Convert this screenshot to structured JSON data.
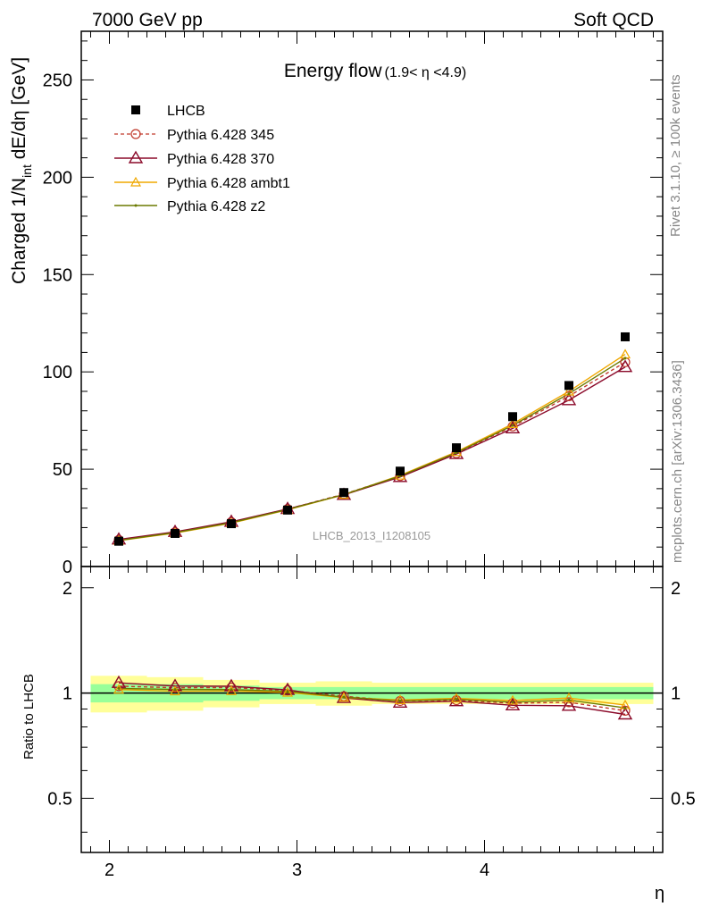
{
  "header": {
    "left": "7000 GeV pp",
    "right": "Soft QCD"
  },
  "side_labels": {
    "rivet": "Rivet 3.1.10, ≥ 100k events",
    "mcplots": "mcplots.cern.ch [arXiv:1306.3436]"
  },
  "colors": {
    "lhcb": "#000000",
    "p345": "#c0392b",
    "p370": "#8b0a2a",
    "ambt1": "#f0a800",
    "z2": "#6b7a00",
    "band_inner": "#99ff99",
    "band_outer": "#ffff99"
  },
  "chart_data": {
    "type": "line",
    "title_main": "Energy flow",
    "title_range": "(1.9< η <4.9)",
    "watermark": "LHCB_2013_I1208105",
    "xlabel": "η",
    "ylabel_main_a": "Charged 1/N",
    "ylabel_main_sub": "int",
    "ylabel_main_b": " dE/dη [GeV]",
    "ylabel_ratio": "Ratio to LHCB",
    "xlim": [
      1.85,
      4.95
    ],
    "ylim": [
      0,
      275
    ],
    "ratio_ylim": [
      0.35,
      2.3
    ],
    "x_ticks": [
      2,
      3,
      4
    ],
    "y_ticks": [
      0,
      50,
      100,
      150,
      200,
      250
    ],
    "ratio_ticks": [
      0.5,
      1,
      2
    ],
    "tick_labels_x": [
      "2",
      "3",
      "4"
    ],
    "tick_labels_y": [
      "0",
      "50",
      "100",
      "150",
      "200",
      "250"
    ],
    "tick_labels_ratio": [
      "0.5",
      "1",
      "2"
    ],
    "bin_edges": [
      1.9,
      2.2,
      2.5,
      2.8,
      3.1,
      3.4,
      3.7,
      4.0,
      4.3,
      4.6,
      4.9
    ],
    "x": [
      2.05,
      2.35,
      2.65,
      2.95,
      3.25,
      3.55,
      3.85,
      4.15,
      4.45,
      4.75
    ],
    "data": {
      "name": "LHCB",
      "y": [
        13.0,
        17.0,
        22.0,
        29.0,
        38.0,
        49.0,
        61.0,
        77.0,
        93.0,
        118.0
      ]
    },
    "band_inner": [
      0.06,
      0.06,
      0.05,
      0.04,
      0.04,
      0.04,
      0.04,
      0.04,
      0.04,
      0.04
    ],
    "band_outer": [
      0.12,
      0.11,
      0.09,
      0.07,
      0.08,
      0.07,
      0.07,
      0.07,
      0.07,
      0.07
    ],
    "series": [
      {
        "name": "Pythia 6.428 345",
        "key": "p345",
        "marker": "circle",
        "dashed": true,
        "y": [
          13.6,
          17.6,
          22.8,
          29.5,
          37.2,
          46.5,
          58.2,
          72.0,
          87.5,
          105.0
        ]
      },
      {
        "name": "Pythia 6.428 370",
        "key": "p370",
        "marker": "triangle",
        "dashed": false,
        "y": [
          13.9,
          17.8,
          23.0,
          29.6,
          36.8,
          46.0,
          57.8,
          71.0,
          85.5,
          102.5
        ]
      },
      {
        "name": "Pythia 6.428 ambt1",
        "key": "ambt1",
        "marker": "triangle-small",
        "dashed": false,
        "y": [
          13.3,
          17.2,
          22.3,
          29.1,
          36.9,
          46.8,
          58.9,
          73.3,
          90.0,
          109.0
        ]
      },
      {
        "name": "Pythia 6.428 z2",
        "key": "z2",
        "marker": "dot",
        "dashed": false,
        "y": [
          13.4,
          17.4,
          22.5,
          29.3,
          37.0,
          46.5,
          58.5,
          72.5,
          88.8,
          107.0
        ]
      }
    ]
  }
}
